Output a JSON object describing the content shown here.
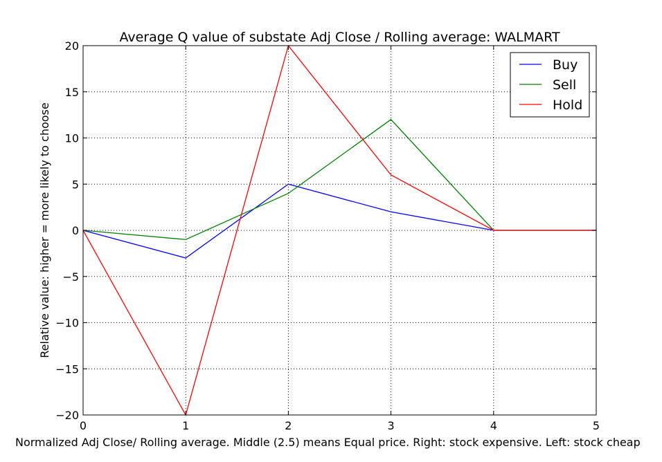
{
  "chart_data": {
    "type": "line",
    "title": "Average Q value of substate Adj Close / Rolling average: WALMART",
    "xlabel": "Normalized Adj Close/ Rolling average. Middle (2.5) means Equal price. Right: stock expensive. Left: stock cheap",
    "ylabel": "Relative value: higher = more likely to choose",
    "x": [
      0,
      1,
      2,
      3,
      4,
      5
    ],
    "xlim": [
      0,
      5
    ],
    "ylim": [
      -20,
      20
    ],
    "xticks": [
      0,
      1,
      2,
      3,
      4,
      5
    ],
    "yticks": [
      -20,
      -15,
      -10,
      -5,
      0,
      5,
      10,
      15,
      20
    ],
    "xtick_labels": [
      "0",
      "1",
      "2",
      "3",
      "4",
      "5"
    ],
    "ytick_labels": [
      "−20",
      "−15",
      "−10",
      "−5",
      "0",
      "5",
      "10",
      "15",
      "20"
    ],
    "grid": true,
    "legend_position": "top-right",
    "series": [
      {
        "name": "Buy",
        "color": "#0000ff",
        "values": [
          0,
          -3,
          5,
          2,
          0,
          0
        ]
      },
      {
        "name": "Sell",
        "color": "#008000",
        "values": [
          0,
          -1,
          4,
          12,
          0,
          0
        ]
      },
      {
        "name": "Hold",
        "color": "#ff0000",
        "values": [
          0,
          -20,
          20,
          6,
          0,
          0
        ]
      }
    ]
  }
}
